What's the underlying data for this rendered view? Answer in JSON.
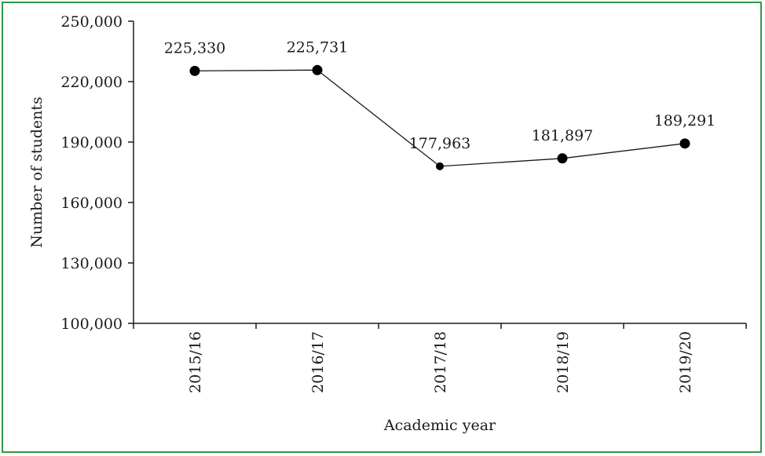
{
  "chart_data": {
    "type": "line",
    "xlabel": "Academic year",
    "ylabel": "Number of students",
    "categories": [
      "2015/16",
      "2016/17",
      "2017/18",
      "2018/19",
      "2019/20"
    ],
    "values": [
      225330,
      225731,
      177963,
      181897,
      189291
    ],
    "value_labels": [
      "225,330",
      "225,731",
      "177,963",
      "181,897",
      "189,291"
    ],
    "ylim": [
      100000,
      250000
    ],
    "yticks": [
      100000,
      130000,
      160000,
      190000,
      220000,
      250000
    ],
    "ytick_labels": [
      "100,000",
      "130,000",
      "160,000",
      "190,000",
      "220,000",
      "250,000"
    ],
    "grid": false,
    "legend": "none",
    "colors": {
      "line": "#1a1a1a",
      "marker": "#000000",
      "frame": "#2e9a46"
    }
  }
}
